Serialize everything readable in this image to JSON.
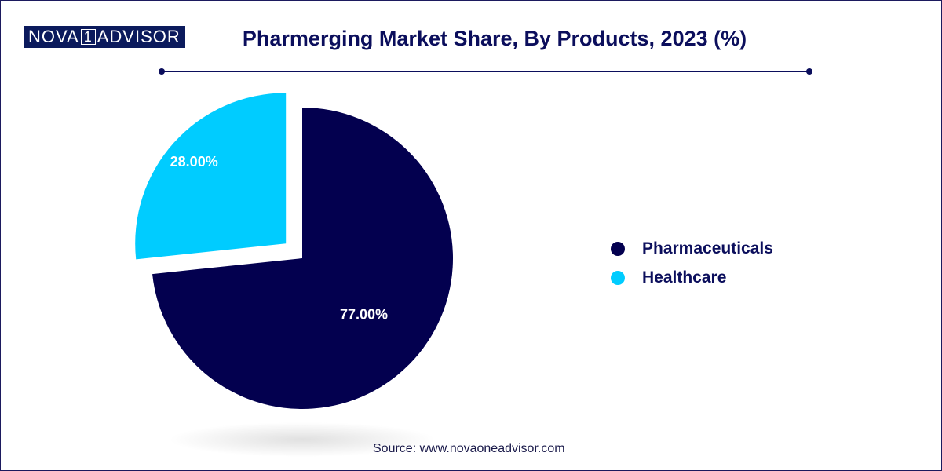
{
  "logo": {
    "left": "NOVA",
    "one": "1",
    "right": "ADVISOR"
  },
  "colors": {
    "pharmaceuticals": "#03004f",
    "healthcare": "#00ccff",
    "title": "#0b0e5c"
  },
  "chart_data": {
    "type": "pie",
    "title": "Pharmerging Market Share, By Products, 2023 (%)",
    "slices": [
      {
        "name": "Pharmaceuticals",
        "value": 77.0,
        "label": "77.00%",
        "color": "#03004f",
        "exploded": false
      },
      {
        "name": "Healthcare",
        "value": 28.0,
        "label": "28.00%",
        "color": "#00ccff",
        "exploded": true
      }
    ],
    "legend_position": "right"
  },
  "source": "Source: www.novaoneadvisor.com"
}
